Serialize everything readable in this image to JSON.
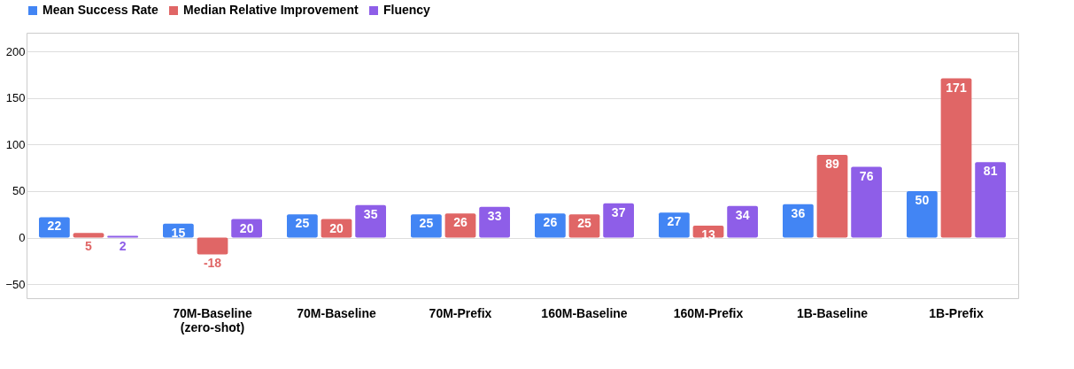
{
  "chart_data": {
    "type": "bar",
    "categories": [
      null,
      "70M-Baseline\n(zero-shot)",
      "70M-Baseline",
      "70M-Prefix",
      "160M-Baseline",
      "160M-Prefix",
      "1B-Baseline",
      "1B-Prefix"
    ],
    "series": [
      {
        "name": "Mean Success Rate",
        "color": "#4285f4",
        "values": [
          22,
          15,
          25,
          25,
          26,
          27,
          36,
          50
        ]
      },
      {
        "name": "Median Relative Improvement",
        "color": "#e06666",
        "values": [
          5,
          -18,
          20,
          26,
          25,
          13,
          89,
          171
        ]
      },
      {
        "name": "Fluency",
        "color": "#8e5ee8",
        "values": [
          2,
          20,
          35,
          33,
          37,
          34,
          76,
          81
        ]
      }
    ],
    "ylim": [
      -65,
      220
    ],
    "yticks": [
      -50,
      0,
      50,
      100,
      150,
      200
    ],
    "grid": "y",
    "legend": "top",
    "data_labels": true
  }
}
